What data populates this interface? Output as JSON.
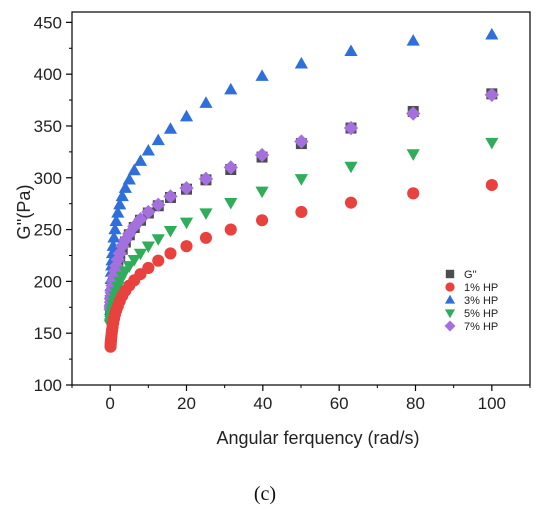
{
  "chart_data": {
    "type": "scatter",
    "title": "",
    "xlabel": "Angular ferquency (rad/s)",
    "ylabel": "G''(Pa)",
    "xlim": [
      -10,
      110
    ],
    "ylim": [
      100,
      460
    ],
    "xticks": [
      0,
      20,
      40,
      60,
      80,
      100
    ],
    "yticks": [
      100,
      150,
      200,
      250,
      300,
      350,
      400,
      450
    ],
    "grid": false,
    "legend_position": "bottom-right",
    "caption": "(c)",
    "x": [
      0.1,
      0.13,
      0.16,
      0.2,
      0.25,
      0.32,
      0.4,
      0.5,
      0.63,
      0.79,
      1.0,
      1.26,
      1.58,
      2.0,
      2.51,
      3.16,
      3.98,
      5.01,
      6.31,
      7.94,
      10.0,
      12.6,
      15.8,
      20.0,
      25.1,
      31.6,
      39.8,
      50.1,
      63.1,
      79.4,
      100.0
    ],
    "series": [
      {
        "name": "G''",
        "marker": "square",
        "color": "#4d4d4d",
        "values": [
          171,
          173,
          175,
          177,
          179,
          182,
          185,
          188,
          192,
          196,
          200,
          205,
          211,
          217,
          224,
          231,
          238,
          245,
          252,
          259,
          266,
          273,
          281,
          289,
          298,
          308,
          320,
          333,
          348,
          364,
          381
        ]
      },
      {
        "name": "1% HP",
        "marker": "circle",
        "color": "#e8413e",
        "values": [
          137,
          139,
          141,
          143,
          145,
          147,
          150,
          153,
          156,
          160,
          164,
          168,
          172,
          176,
          181,
          186,
          191,
          196,
          201,
          207,
          213,
          220,
          227,
          234,
          242,
          250,
          259,
          267,
          276,
          285,
          293
        ]
      },
      {
        "name": "3% HP",
        "marker": "triangle-up",
        "color": "#2f6fdb",
        "values": [
          172,
          180,
          188,
          195,
          202,
          209,
          215,
          220,
          227,
          234,
          242,
          250,
          258,
          266,
          274,
          282,
          290,
          298,
          307,
          316,
          326,
          336,
          347,
          359,
          372,
          385,
          398,
          410,
          422,
          432,
          438
        ]
      },
      {
        "name": "5% HP",
        "marker": "triangle-down",
        "color": "#2fad5a",
        "values": [
          158,
          159,
          160,
          162,
          164,
          166,
          168,
          171,
          174,
          178,
          182,
          186,
          190,
          195,
          200,
          205,
          210,
          215,
          221,
          227,
          234,
          241,
          249,
          257,
          266,
          276,
          287,
          299,
          311,
          323,
          334
        ]
      },
      {
        "name": "7% HP",
        "marker": "diamond",
        "color": "#a470de",
        "values": [
          173,
          175,
          177,
          180,
          183,
          186,
          189,
          192,
          196,
          200,
          205,
          210,
          215,
          221,
          227,
          234,
          240,
          246,
          253,
          260,
          267,
          274,
          282,
          290,
          299,
          310,
          322,
          335,
          348,
          362,
          380
        ]
      }
    ]
  }
}
